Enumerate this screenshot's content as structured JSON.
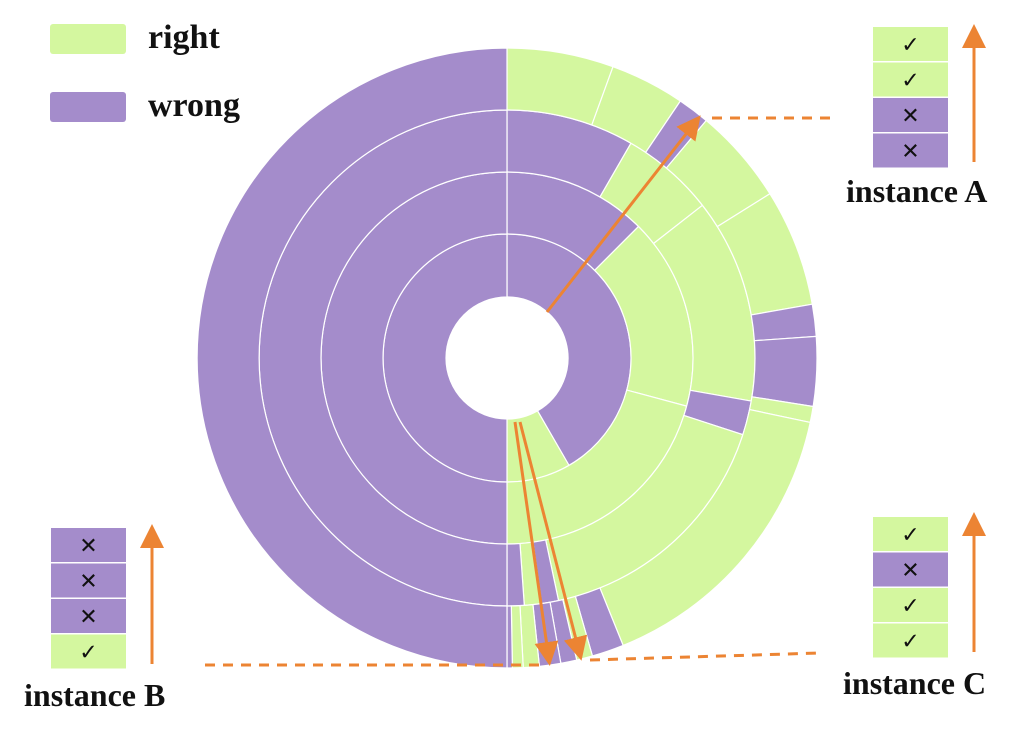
{
  "legend": {
    "right": {
      "label": "right",
      "color": "#d4f79f"
    },
    "wrong": {
      "label": "wrong",
      "color": "#a48ccb"
    }
  },
  "colors": {
    "arrow": "#ec8433",
    "ring_separator": "#ffffff"
  },
  "rings": [
    {
      "level": 1,
      "segments": [
        {
          "start": 0,
          "end": 150,
          "state": "wrong"
        },
        {
          "start": 150,
          "end": 180,
          "state": "right"
        },
        {
          "start": 180,
          "end": 360,
          "state": "wrong"
        }
      ]
    },
    {
      "level": 2,
      "segments": [
        {
          "start": 0,
          "end": 45,
          "state": "wrong"
        },
        {
          "start": 45,
          "end": 105,
          "state": "right"
        },
        {
          "start": 105,
          "end": 180,
          "state": "right"
        },
        {
          "start": 180,
          "end": 360,
          "state": "wrong"
        }
      ]
    },
    {
      "level": 3,
      "segments": [
        {
          "start": 0,
          "end": 30,
          "state": "wrong"
        },
        {
          "start": 30,
          "end": 52,
          "state": "right"
        },
        {
          "start": 52,
          "end": 100,
          "state": "right"
        },
        {
          "start": 100,
          "end": 108,
          "state": "wrong"
        },
        {
          "start": 108,
          "end": 168,
          "state": "right"
        },
        {
          "start": 168,
          "end": 172,
          "state": "wrong"
        },
        {
          "start": 172,
          "end": 176,
          "state": "right"
        },
        {
          "start": 176,
          "end": 180,
          "state": "wrong"
        },
        {
          "start": 180,
          "end": 360,
          "state": "wrong"
        }
      ]
    },
    {
      "level": 4,
      "segments": [
        {
          "start": 0,
          "end": 20,
          "state": "right"
        },
        {
          "start": 20,
          "end": 34,
          "state": "right"
        },
        {
          "start": 34,
          "end": 40,
          "state": "wrong"
        },
        {
          "start": 40,
          "end": 58,
          "state": "right"
        },
        {
          "start": 58,
          "end": 80,
          "state": "right"
        },
        {
          "start": 80,
          "end": 86,
          "state": "wrong"
        },
        {
          "start": 86,
          "end": 99,
          "state": "wrong"
        },
        {
          "start": 99,
          "end": 102,
          "state": "right"
        },
        {
          "start": 102,
          "end": 158,
          "state": "right"
        },
        {
          "start": 158,
          "end": 164,
          "state": "wrong"
        },
        {
          "start": 164,
          "end": 167,
          "state": "right"
        },
        {
          "start": 167,
          "end": 170,
          "state": "wrong"
        },
        {
          "start": 170,
          "end": 174,
          "state": "wrong"
        },
        {
          "start": 174,
          "end": 177,
          "state": "right"
        },
        {
          "start": 177,
          "end": 179,
          "state": "right"
        },
        {
          "start": 179,
          "end": 180,
          "state": "wrong"
        },
        {
          "start": 180,
          "end": 360,
          "state": "wrong"
        }
      ]
    }
  ],
  "instances": [
    {
      "id": "A",
      "label": "instance A",
      "cells": [
        "right",
        "right",
        "wrong",
        "wrong"
      ]
    },
    {
      "id": "B",
      "label": "instance B",
      "cells": [
        "wrong",
        "wrong",
        "wrong",
        "right"
      ]
    },
    {
      "id": "C",
      "label": "instance C",
      "cells": [
        "right",
        "wrong",
        "right",
        "right"
      ]
    }
  ],
  "marks": {
    "right": "✓",
    "wrong": "✕"
  }
}
